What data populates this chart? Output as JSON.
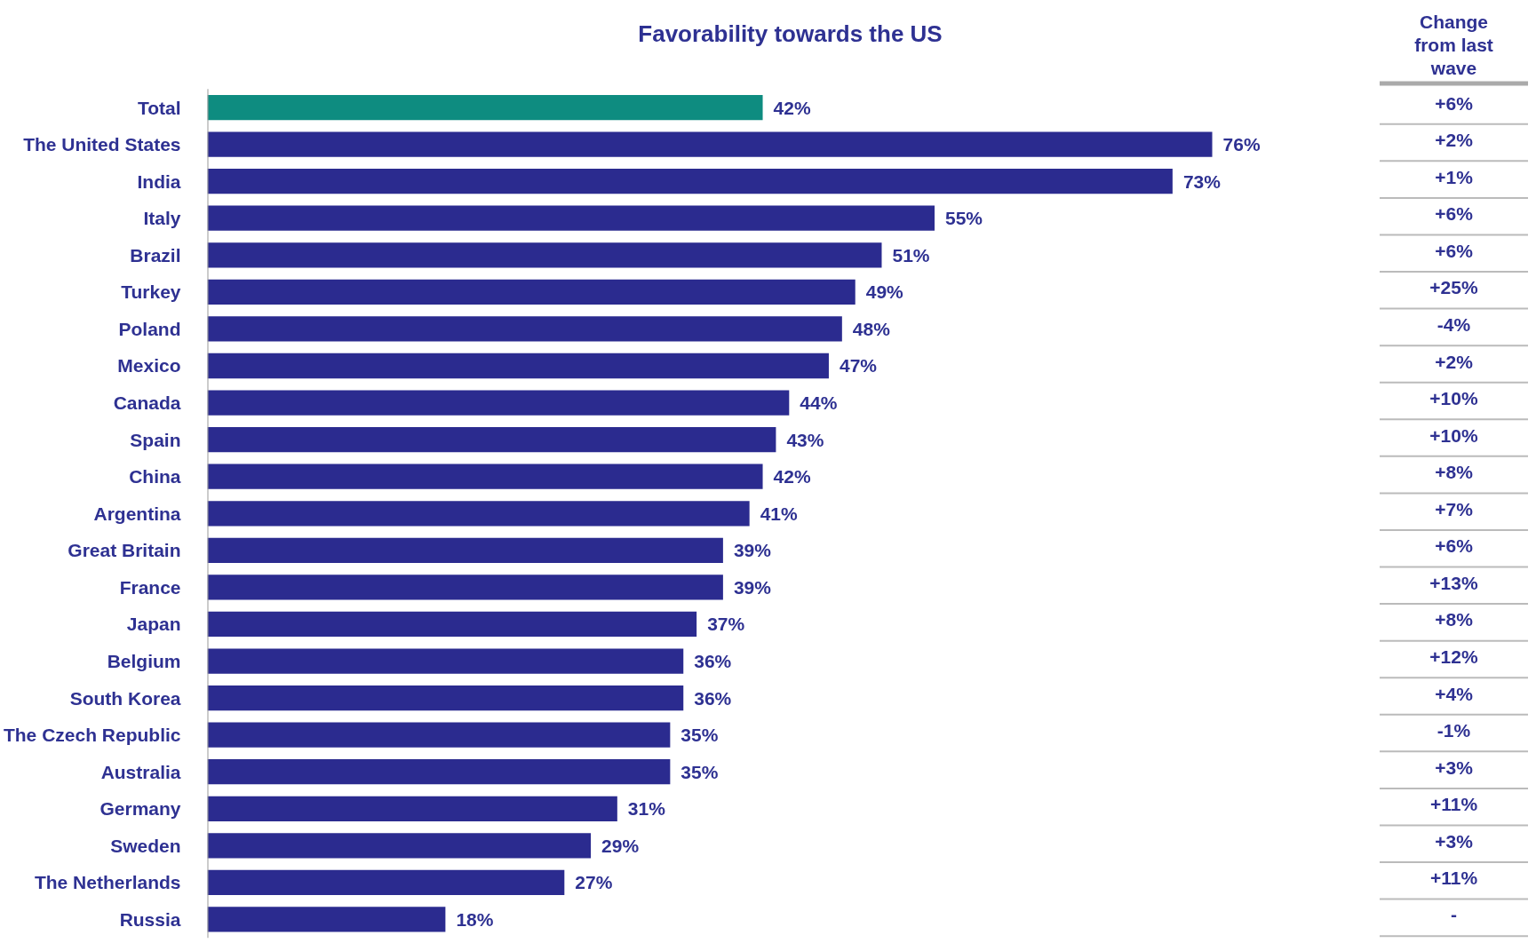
{
  "chart_data": {
    "type": "bar",
    "orientation": "horizontal",
    "title": "Favorability towards the US",
    "categories": [
      "Total",
      "The United States",
      "India",
      "Italy",
      "Brazil",
      "Turkey",
      "Poland",
      "Mexico",
      "Canada",
      "Spain",
      "China",
      "Argentina",
      "Great Britain",
      "France",
      "Japan",
      "Belgium",
      "South Korea",
      "The Czech Republic",
      "Australia",
      "Germany",
      "Sweden",
      "The Netherlands",
      "Russia"
    ],
    "values": [
      42,
      76,
      73,
      55,
      51,
      49,
      48,
      47,
      44,
      43,
      42,
      41,
      39,
      39,
      37,
      36,
      36,
      35,
      35,
      31,
      29,
      27,
      18
    ],
    "colors": [
      "#0e8c80",
      "#2b2b8f",
      "#2b2b8f",
      "#2b2b8f",
      "#2b2b8f",
      "#2b2b8f",
      "#2b2b8f",
      "#2b2b8f",
      "#2b2b8f",
      "#2b2b8f",
      "#2b2b8f",
      "#2b2b8f",
      "#2b2b8f",
      "#2b2b8f",
      "#2b2b8f",
      "#2b2b8f",
      "#2b2b8f",
      "#2b2b8f",
      "#2b2b8f",
      "#2b2b8f",
      "#2b2b8f",
      "#2b2b8f",
      "#2b2b8f"
    ],
    "value_labels": [
      "42%",
      "76%",
      "73%",
      "55%",
      "51%",
      "49%",
      "48%",
      "47%",
      "44%",
      "43%",
      "42%",
      "41%",
      "39%",
      "39%",
      "37%",
      "36%",
      "36%",
      "35%",
      "35%",
      "31%",
      "29%",
      "27%",
      "18%"
    ],
    "grid": false,
    "annotations": [
      "Change from last wave",
      "+6%",
      "+2%",
      "+1%",
      "+6%",
      "+6%",
      "+25%",
      "-4%",
      "+2%",
      "+10%",
      "+10%",
      "+8%",
      "+7%",
      "+6%",
      "+13%",
      "+8%",
      "+12%",
      "+4%",
      "-1%",
      "+3%",
      "+11%",
      "+3%",
      "+11%",
      "-"
    ]
  }
}
